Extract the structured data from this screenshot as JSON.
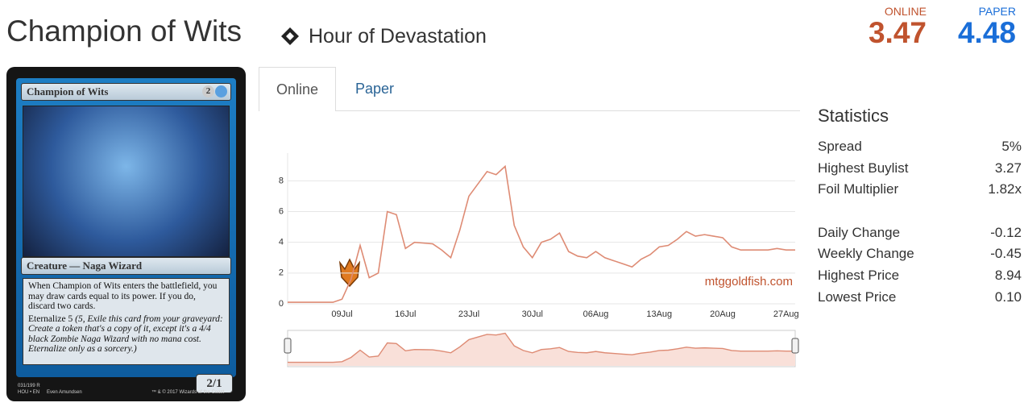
{
  "header": {
    "title": "Champion of Wits",
    "set": "Hour of Devastation"
  },
  "prices": [
    {
      "label": "ONLINE",
      "value": "3.47"
    },
    {
      "label": "PAPER",
      "value": "4.48"
    }
  ],
  "card": {
    "name": "Champion of Wits",
    "cost": "2",
    "type_line": "Creature — Naga Wizard",
    "rules": "When Champion of Wits enters the battlefield, you may draw cards equal to its power. If you do, discard two cards.",
    "keyword": "Eternalize",
    "eternalize_cost": "5",
    "reminder": "(5, Exile this card from your graveyard: Create a token that's a copy of it, except it's a 4/4 black Zombie Naga Wizard with no mana cost. Eternalize only as a sorcery.)",
    "pt": "2/1",
    "collector": "031/199 R",
    "set_line": "HOU • EN",
    "artist": "Even Amundsen",
    "copyright": "™ & © 2017 Wizards of the Coast"
  },
  "tabs": [
    "Online",
    "Paper"
  ],
  "chart_data": {
    "type": "line",
    "watermark": "mtggoldfish.com",
    "color": "#de8b74",
    "categories": [
      null,
      null,
      null,
      null,
      null,
      null,
      "09Jul",
      null,
      null,
      null,
      null,
      null,
      null,
      "16Jul",
      null,
      null,
      null,
      null,
      null,
      null,
      "23Jul",
      null,
      null,
      null,
      null,
      null,
      null,
      "30Jul",
      null,
      null,
      null,
      null,
      null,
      null,
      "06Aug",
      null,
      null,
      null,
      null,
      null,
      null,
      "13Aug",
      null,
      null,
      null,
      null,
      null,
      null,
      "20Aug",
      null,
      null,
      null,
      null,
      null,
      null,
      "27Aug",
      null
    ],
    "values": [
      0.1,
      0.1,
      0.1,
      0.1,
      0.1,
      0.1,
      0.3,
      1.6,
      3.8,
      1.7,
      2.0,
      6.0,
      5.8,
      3.6,
      4.0,
      3.95,
      3.9,
      3.5,
      3.0,
      4.8,
      7.0,
      7.8,
      8.6,
      8.4,
      8.94,
      5.1,
      3.7,
      3.0,
      4.0,
      4.2,
      4.6,
      3.4,
      3.1,
      3.0,
      3.4,
      3.0,
      2.8,
      2.6,
      2.4,
      2.9,
      3.2,
      3.7,
      3.8,
      4.2,
      4.7,
      4.4,
      4.5,
      4.4,
      4.3,
      3.7,
      3.5,
      3.5,
      3.5,
      3.5,
      3.6,
      3.5,
      3.5
    ],
    "ylim": [
      0,
      9.8
    ],
    "yticks": [
      0,
      2,
      4,
      6,
      8
    ],
    "grid": true
  },
  "statistics": {
    "title": "Statistics",
    "rows": [
      {
        "label": "Spread",
        "value": "5%"
      },
      {
        "label": "Highest Buylist",
        "value": "3.27"
      },
      {
        "label": "Foil Multiplier",
        "value": "1.82x"
      },
      {
        "label": "Daily Change",
        "value": "-0.12"
      },
      {
        "label": "Weekly Change",
        "value": "-0.45"
      },
      {
        "label": "Highest Price",
        "value": "8.94"
      },
      {
        "label": "Lowest Price",
        "value": "0.10"
      }
    ]
  }
}
